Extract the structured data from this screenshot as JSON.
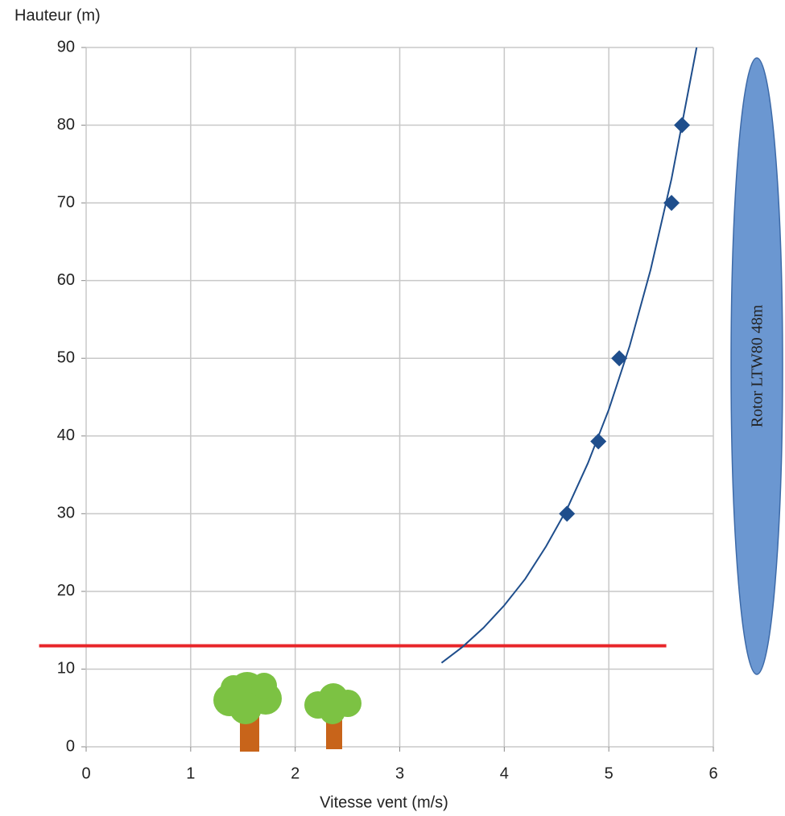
{
  "chart_data": {
    "type": "scatter",
    "y_label": "Hauteur (m)",
    "x_label": "Vitesse vent (m/s)",
    "series": [
      {
        "color": "#1f4e8c",
        "x": [
          4.6,
          4.9,
          5.1,
          5.6,
          5.7
        ],
        "values": [
          30,
          39.3,
          50,
          70,
          80
        ]
      }
    ],
    "trend": {
      "color": "#1f4e8c",
      "x": [
        3.4,
        3.6,
        3.8,
        4.0,
        4.2,
        4.4,
        4.6,
        4.8,
        5.0,
        5.2,
        5.4,
        5.6,
        5.84
      ],
      "values": [
        10.8,
        12.85,
        15.3,
        18.2,
        21.6,
        25.8,
        30.6,
        36.5,
        43.4,
        51.6,
        61.4,
        73.1,
        90
      ]
    },
    "reference_line": {
      "color": "#e8262a",
      "x": [
        -0.45,
        5.55
      ],
      "value": 13
    },
    "rotor_label": "Rotor LTW80 48m",
    "xlim": [
      0,
      6
    ],
    "xticks": [
      0,
      1,
      2,
      3,
      4,
      5,
      6
    ],
    "ylim": [
      0,
      90
    ],
    "yticks": [
      0,
      10,
      20,
      30,
      40,
      50,
      60,
      70,
      80,
      90
    ],
    "grid": true
  }
}
